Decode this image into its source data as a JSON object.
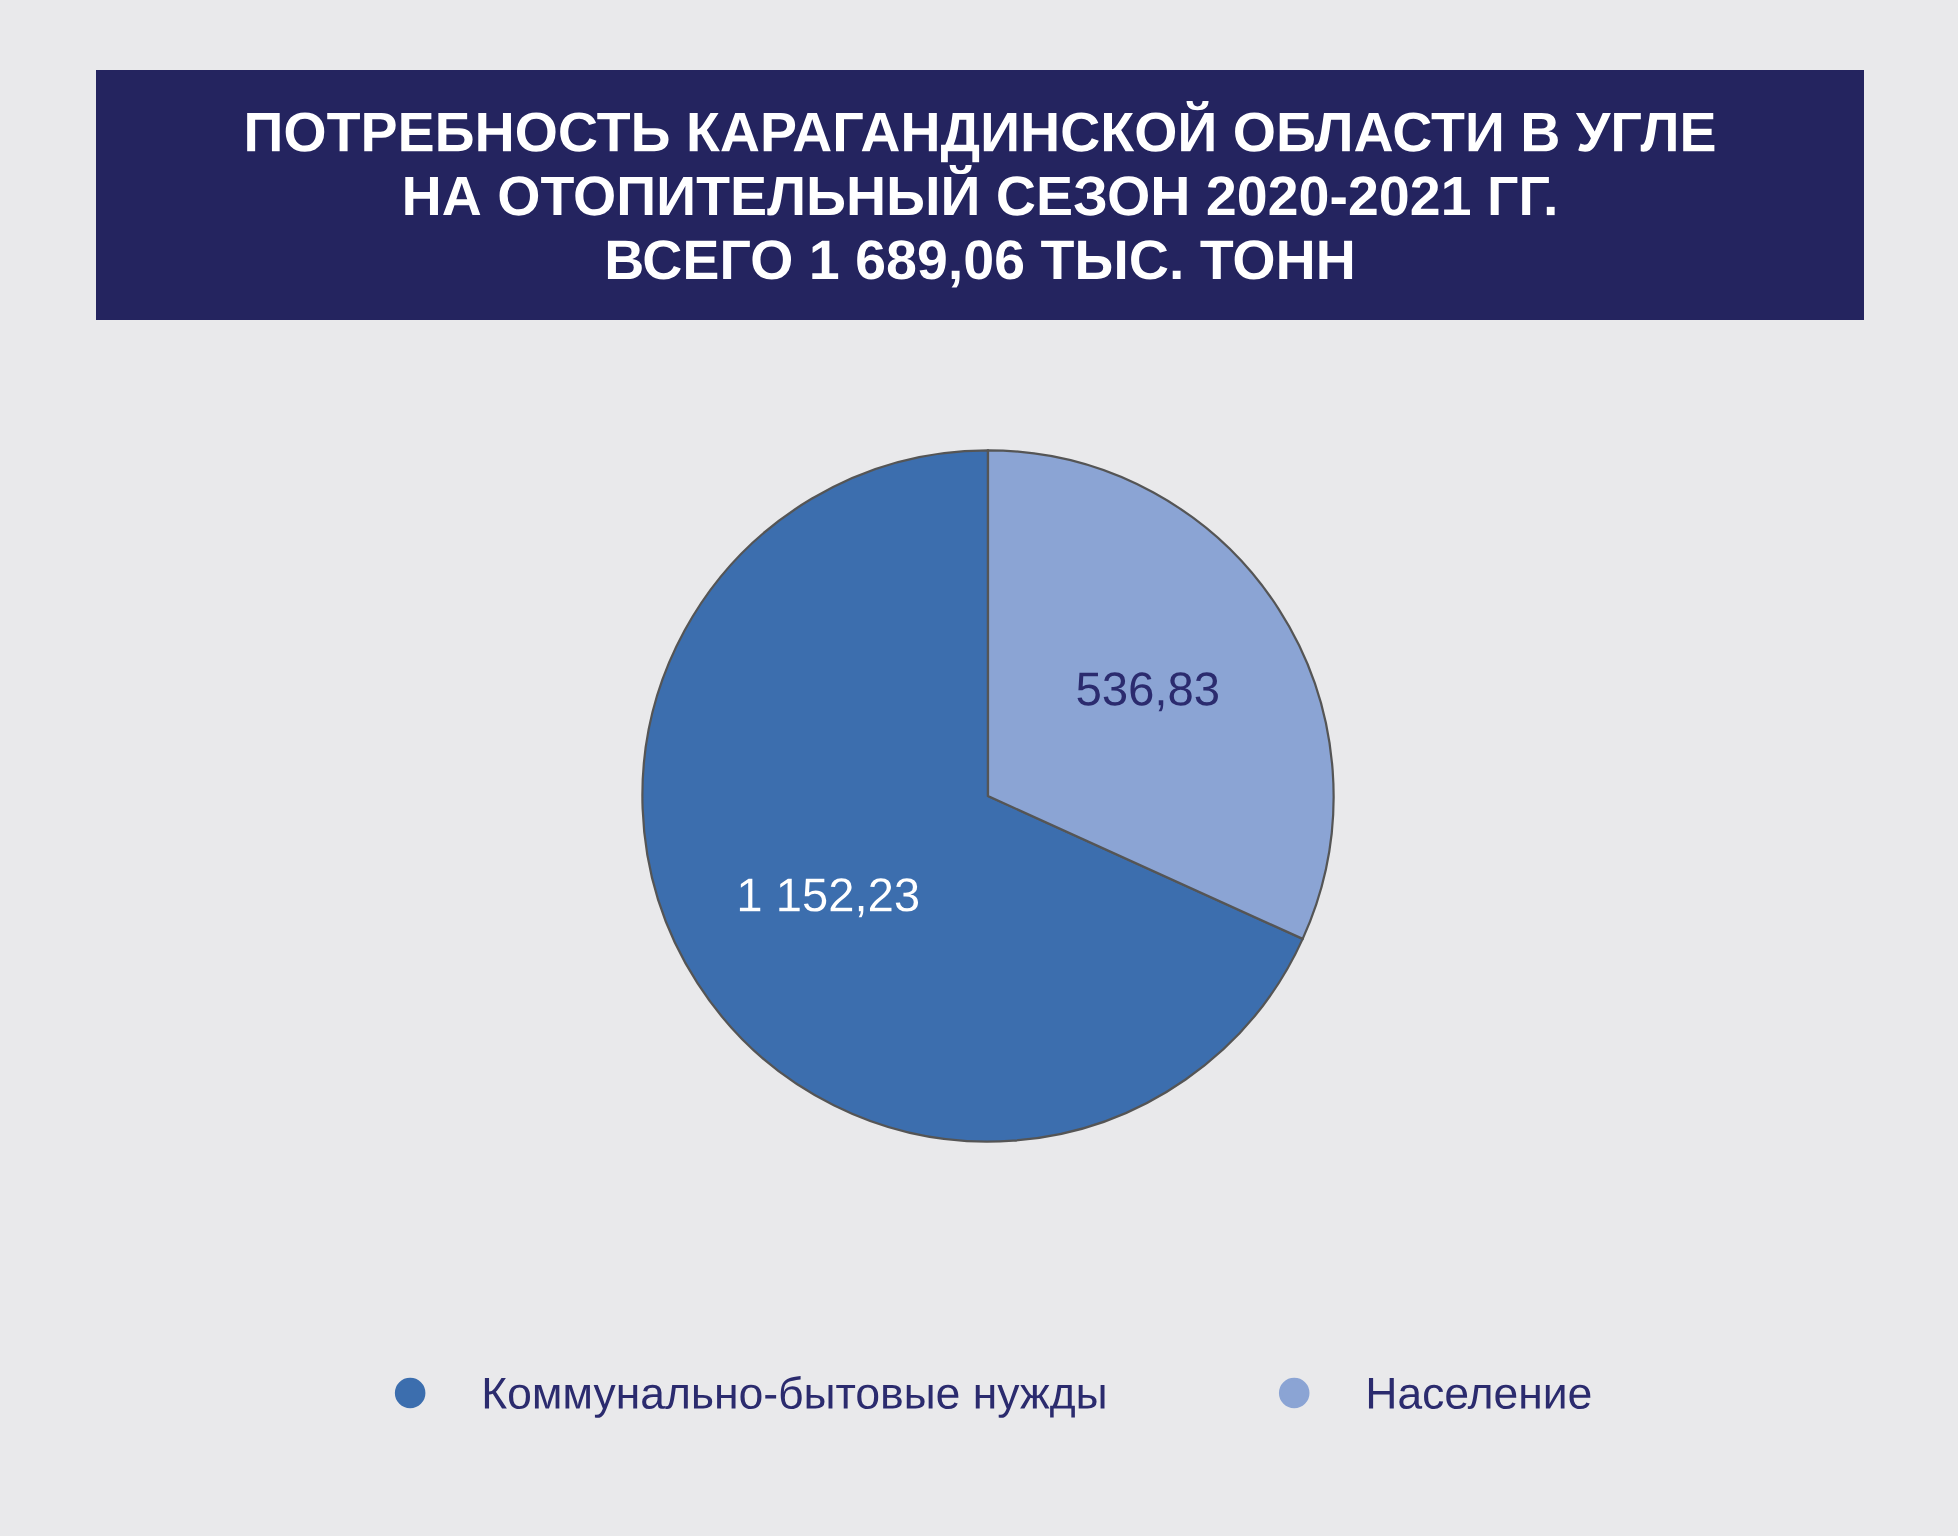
{
  "chart_data": {
    "type": "pie",
    "title": "ПОТРЕБНОСТЬ КАРАГАНДИНСКОЙ ОБЛАСТИ В УГЛЕ\nНА ОТОПИТЕЛЬНЫЙ СЕЗОН 2020-2021 ГГ.\nВСЕГО 1 689,06 ТЫС. ТОНН",
    "categories": [
      "Коммунально-бытовые нужды",
      "Население"
    ],
    "values": [
      1152.23,
      536.83
    ],
    "colors": [
      "#3c6eae",
      "#8ba4d4"
    ],
    "value_labels": [
      "1 152,23",
      "536,83"
    ],
    "legend": "bottom"
  }
}
